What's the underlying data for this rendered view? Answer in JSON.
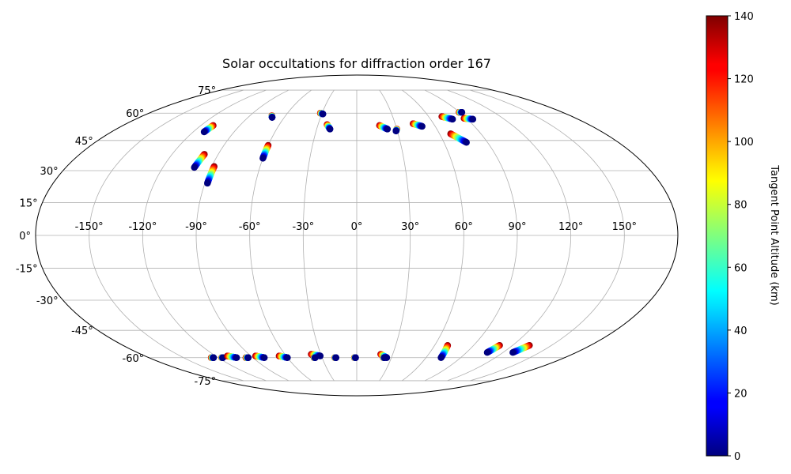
{
  "chart_data": {
    "type": "scatter",
    "projection": "mollweide",
    "title": "Solar occultations for diffraction order 167",
    "xlabel": "",
    "ylabel": "",
    "grid": true,
    "x_ticks": [
      "-150°",
      "-120°",
      "-90°",
      "-60°",
      "-30°",
      "0°",
      "30°",
      "60°",
      "90°",
      "120°",
      "150°"
    ],
    "y_ticks": [
      "-75°",
      "-60°",
      "-45°",
      "-30°",
      "-15°",
      "0°",
      "15°",
      "30°",
      "45°",
      "60°",
      "75°"
    ],
    "colorbar": {
      "label": "Tangent Point Altitude (km)",
      "range": [
        0,
        140
      ],
      "ticks": [
        "0",
        "20",
        "40",
        "60",
        "80",
        "100",
        "120",
        "140"
      ],
      "colormap": "jet",
      "placement": "right"
    },
    "series": [
      {
        "lon_start": -110.5,
        "lat_start": 53.0,
        "lon_end": -112.0,
        "lat_end": 49.5
      },
      {
        "lon_start": -99.0,
        "lat_start": 38.0,
        "lon_end": -100.5,
        "lat_end": 31.5
      },
      {
        "lon_start": -88.5,
        "lat_start": 32.0,
        "lon_end": -88.5,
        "lat_end": 24.0
      },
      {
        "lon_start": -71.5,
        "lat_start": 58.5,
        "lon_end": -70.0,
        "lat_end": 57.5
      },
      {
        "lon_start": -60.0,
        "lat_start": 42.5,
        "lon_end": -60.0,
        "lat_end": 36.0
      },
      {
        "lon_start": -31.5,
        "lat_start": 60.0,
        "lon_end": -29.0,
        "lat_end": 59.5
      },
      {
        "lon_start": -23.0,
        "lat_start": 53.5,
        "lon_end": -20.0,
        "lat_end": 51.0
      },
      {
        "lon_start": 17.5,
        "lat_start": 53.0,
        "lon_end": 23.0,
        "lat_end": 51.0
      },
      {
        "lon_start": 30.0,
        "lat_start": 51.0,
        "lon_end": 29.0,
        "lat_end": 50.0
      },
      {
        "lon_start": 44.0,
        "lat_start": 54.0,
        "lon_end": 50.0,
        "lat_end": 52.5
      },
      {
        "lon_start": 71.0,
        "lat_start": 58.0,
        "lon_end": 78.0,
        "lat_end": 56.5
      },
      {
        "lon_start": 68.0,
        "lat_start": 48.5,
        "lon_end": 75.5,
        "lat_end": 44.0
      },
      {
        "lon_start": 89.5,
        "lat_start": 60.5,
        "lon_end": 92.0,
        "lat_end": 60.5
      },
      {
        "lon_start": 88.0,
        "lat_start": 57.0,
        "lon_end": 94.5,
        "lat_end": 56.5
      },
      {
        "lon_start": -126.0,
        "lat_start": -60.0,
        "lon_end": -124.0,
        "lat_end": -60.0
      },
      {
        "lon_start": -117.0,
        "lat_start": -60.0,
        "lon_end": -116.0,
        "lat_end": -60.0
      },
      {
        "lon_start": -110.0,
        "lat_start": -59.0,
        "lon_end": -104.0,
        "lat_end": -60.0
      },
      {
        "lon_start": -96.0,
        "lat_start": -60.0,
        "lon_end": -94.0,
        "lat_end": -60.0
      },
      {
        "lon_start": -86.0,
        "lat_start": -59.0,
        "lon_end": -80.0,
        "lat_end": -60.0
      },
      {
        "lon_start": -66.0,
        "lat_start": -59.0,
        "lon_end": -60.0,
        "lat_end": -60.0
      },
      {
        "lon_start": -38.0,
        "lat_start": -58.0,
        "lon_end": -31.0,
        "lat_end": -59.0
      },
      {
        "lon_start": -37.0,
        "lat_start": -60.0,
        "lon_end": -36.0,
        "lat_end": -60.0
      },
      {
        "lon_start": -19.0,
        "lat_start": -60.0,
        "lon_end": -18.0,
        "lat_end": -60.0
      },
      {
        "lon_start": -2.0,
        "lat_start": -60.0,
        "lon_end": -1.0,
        "lat_end": -60.0
      },
      {
        "lon_start": 20.0,
        "lat_start": -58.0,
        "lon_end": 26.0,
        "lat_end": -60.0
      },
      {
        "lon_start": 23.0,
        "lat_start": -60.0,
        "lon_end": 24.0,
        "lat_end": -60.0
      },
      {
        "lon_start": 70.0,
        "lat_start": -53.0,
        "lon_end": 73.0,
        "lat_end": -60.0
      },
      {
        "lon_start": 110.0,
        "lat_start": -53.0,
        "lon_end": 107.0,
        "lat_end": -57.0
      },
      {
        "lon_start": 133.0,
        "lat_start": -53.0,
        "lon_end": 128.0,
        "lat_end": -57.0
      }
    ]
  }
}
